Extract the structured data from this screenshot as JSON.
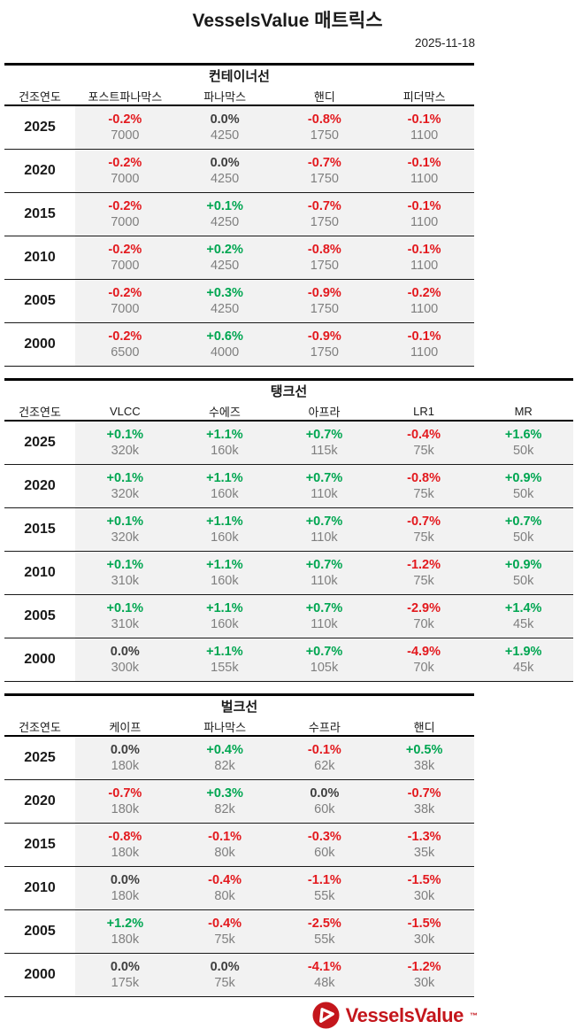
{
  "title": "VesselsValue 매트릭스",
  "date": "2025-11-18",
  "colors": {
    "up_green": "#00a651",
    "down_red": "#e3191e",
    "flat_gray": "#3f3f3f",
    "value_gray": "#7f7f7f",
    "row_band": "#f2f2f2",
    "logo_red": "#c4161c"
  },
  "logo": {
    "icon": "vesselsvalue-sail-circle-icon",
    "text": "VesselsValue",
    "tm": "™"
  },
  "chart_data": [
    {
      "type": "table",
      "title": "컨테이너선",
      "row_header": "건조연도",
      "columns": [
        "포스트파나막스",
        "파나막스",
        "핸디",
        "피더막스"
      ],
      "rows": [
        {
          "year": "2025",
          "cells": [
            {
              "change": "-0.2%",
              "trend": "down",
              "value": "7000"
            },
            {
              "change": "0.0%",
              "trend": "flat",
              "value": "4250"
            },
            {
              "change": "-0.8%",
              "trend": "down",
              "value": "1750"
            },
            {
              "change": "-0.1%",
              "trend": "down",
              "value": "1100"
            }
          ]
        },
        {
          "year": "2020",
          "cells": [
            {
              "change": "-0.2%",
              "trend": "down",
              "value": "7000"
            },
            {
              "change": "0.0%",
              "trend": "flat",
              "value": "4250"
            },
            {
              "change": "-0.7%",
              "trend": "down",
              "value": "1750"
            },
            {
              "change": "-0.1%",
              "trend": "down",
              "value": "1100"
            }
          ]
        },
        {
          "year": "2015",
          "cells": [
            {
              "change": "-0.2%",
              "trend": "down",
              "value": "7000"
            },
            {
              "change": "+0.1%",
              "trend": "up",
              "value": "4250"
            },
            {
              "change": "-0.7%",
              "trend": "down",
              "value": "1750"
            },
            {
              "change": "-0.1%",
              "trend": "down",
              "value": "1100"
            }
          ]
        },
        {
          "year": "2010",
          "cells": [
            {
              "change": "-0.2%",
              "trend": "down",
              "value": "7000"
            },
            {
              "change": "+0.2%",
              "trend": "up",
              "value": "4250"
            },
            {
              "change": "-0.8%",
              "trend": "down",
              "value": "1750"
            },
            {
              "change": "-0.1%",
              "trend": "down",
              "value": "1100"
            }
          ]
        },
        {
          "year": "2005",
          "cells": [
            {
              "change": "-0.2%",
              "trend": "down",
              "value": "7000"
            },
            {
              "change": "+0.3%",
              "trend": "up",
              "value": "4250"
            },
            {
              "change": "-0.9%",
              "trend": "down",
              "value": "1750"
            },
            {
              "change": "-0.2%",
              "trend": "down",
              "value": "1100"
            }
          ]
        },
        {
          "year": "2000",
          "cells": [
            {
              "change": "-0.2%",
              "trend": "down",
              "value": "6500"
            },
            {
              "change": "+0.6%",
              "trend": "up",
              "value": "4000"
            },
            {
              "change": "-0.9%",
              "trend": "down",
              "value": "1750"
            },
            {
              "change": "-0.1%",
              "trend": "down",
              "value": "1100"
            }
          ]
        }
      ]
    },
    {
      "type": "table",
      "title": "탱크선",
      "row_header": "건조연도",
      "columns": [
        "VLCC",
        "수에즈",
        "아프라",
        "LR1",
        "MR"
      ],
      "rows": [
        {
          "year": "2025",
          "cells": [
            {
              "change": "+0.1%",
              "trend": "up",
              "value": "320k"
            },
            {
              "change": "+1.1%",
              "trend": "up",
              "value": "160k"
            },
            {
              "change": "+0.7%",
              "trend": "up",
              "value": "115k"
            },
            {
              "change": "-0.4%",
              "trend": "down",
              "value": "75k"
            },
            {
              "change": "+1.6%",
              "trend": "up",
              "value": "50k"
            }
          ]
        },
        {
          "year": "2020",
          "cells": [
            {
              "change": "+0.1%",
              "trend": "up",
              "value": "320k"
            },
            {
              "change": "+1.1%",
              "trend": "up",
              "value": "160k"
            },
            {
              "change": "+0.7%",
              "trend": "up",
              "value": "110k"
            },
            {
              "change": "-0.8%",
              "trend": "down",
              "value": "75k"
            },
            {
              "change": "+0.9%",
              "trend": "up",
              "value": "50k"
            }
          ]
        },
        {
          "year": "2015",
          "cells": [
            {
              "change": "+0.1%",
              "trend": "up",
              "value": "320k"
            },
            {
              "change": "+1.1%",
              "trend": "up",
              "value": "160k"
            },
            {
              "change": "+0.7%",
              "trend": "up",
              "value": "110k"
            },
            {
              "change": "-0.7%",
              "trend": "down",
              "value": "75k"
            },
            {
              "change": "+0.7%",
              "trend": "up",
              "value": "50k"
            }
          ]
        },
        {
          "year": "2010",
          "cells": [
            {
              "change": "+0.1%",
              "trend": "up",
              "value": "310k"
            },
            {
              "change": "+1.1%",
              "trend": "up",
              "value": "160k"
            },
            {
              "change": "+0.7%",
              "trend": "up",
              "value": "110k"
            },
            {
              "change": "-1.2%",
              "trend": "down",
              "value": "75k"
            },
            {
              "change": "+0.9%",
              "trend": "up",
              "value": "50k"
            }
          ]
        },
        {
          "year": "2005",
          "cells": [
            {
              "change": "+0.1%",
              "trend": "up",
              "value": "310k"
            },
            {
              "change": "+1.1%",
              "trend": "up",
              "value": "160k"
            },
            {
              "change": "+0.7%",
              "trend": "up",
              "value": "110k"
            },
            {
              "change": "-2.9%",
              "trend": "down",
              "value": "70k"
            },
            {
              "change": "+1.4%",
              "trend": "up",
              "value": "45k"
            }
          ]
        },
        {
          "year": "2000",
          "cells": [
            {
              "change": "0.0%",
              "trend": "flat",
              "value": "300k"
            },
            {
              "change": "+1.1%",
              "trend": "up",
              "value": "155k"
            },
            {
              "change": "+0.7%",
              "trend": "up",
              "value": "105k"
            },
            {
              "change": "-4.9%",
              "trend": "down",
              "value": "70k"
            },
            {
              "change": "+1.9%",
              "trend": "up",
              "value": "45k"
            }
          ]
        }
      ]
    },
    {
      "type": "table",
      "title": "벌크선",
      "row_header": "건조연도",
      "columns": [
        "케이프",
        "파나막스",
        "수프라",
        "핸디"
      ],
      "rows": [
        {
          "year": "2025",
          "cells": [
            {
              "change": "0.0%",
              "trend": "flat",
              "value": "180k"
            },
            {
              "change": "+0.4%",
              "trend": "up",
              "value": "82k"
            },
            {
              "change": "-0.1%",
              "trend": "down",
              "value": "62k"
            },
            {
              "change": "+0.5%",
              "trend": "up",
              "value": "38k"
            }
          ]
        },
        {
          "year": "2020",
          "cells": [
            {
              "change": "-0.7%",
              "trend": "down",
              "value": "180k"
            },
            {
              "change": "+0.3%",
              "trend": "up",
              "value": "82k"
            },
            {
              "change": "0.0%",
              "trend": "flat",
              "value": "60k"
            },
            {
              "change": "-0.7%",
              "trend": "down",
              "value": "38k"
            }
          ]
        },
        {
          "year": "2015",
          "cells": [
            {
              "change": "-0.8%",
              "trend": "down",
              "value": "180k"
            },
            {
              "change": "-0.1%",
              "trend": "down",
              "value": "80k"
            },
            {
              "change": "-0.3%",
              "trend": "down",
              "value": "60k"
            },
            {
              "change": "-1.3%",
              "trend": "down",
              "value": "35k"
            }
          ]
        },
        {
          "year": "2010",
          "cells": [
            {
              "change": "0.0%",
              "trend": "flat",
              "value": "180k"
            },
            {
              "change": "-0.4%",
              "trend": "down",
              "value": "80k"
            },
            {
              "change": "-1.1%",
              "trend": "down",
              "value": "55k"
            },
            {
              "change": "-1.5%",
              "trend": "down",
              "value": "30k"
            }
          ]
        },
        {
          "year": "2005",
          "cells": [
            {
              "change": "+1.2%",
              "trend": "up",
              "value": "180k"
            },
            {
              "change": "-0.4%",
              "trend": "down",
              "value": "75k"
            },
            {
              "change": "-2.5%",
              "trend": "down",
              "value": "55k"
            },
            {
              "change": "-1.5%",
              "trend": "down",
              "value": "30k"
            }
          ]
        },
        {
          "year": "2000",
          "cells": [
            {
              "change": "0.0%",
              "trend": "flat",
              "value": "175k"
            },
            {
              "change": "0.0%",
              "trend": "flat",
              "value": "75k"
            },
            {
              "change": "-4.1%",
              "trend": "down",
              "value": "48k"
            },
            {
              "change": "-1.2%",
              "trend": "down",
              "value": "30k"
            }
          ]
        }
      ]
    }
  ]
}
